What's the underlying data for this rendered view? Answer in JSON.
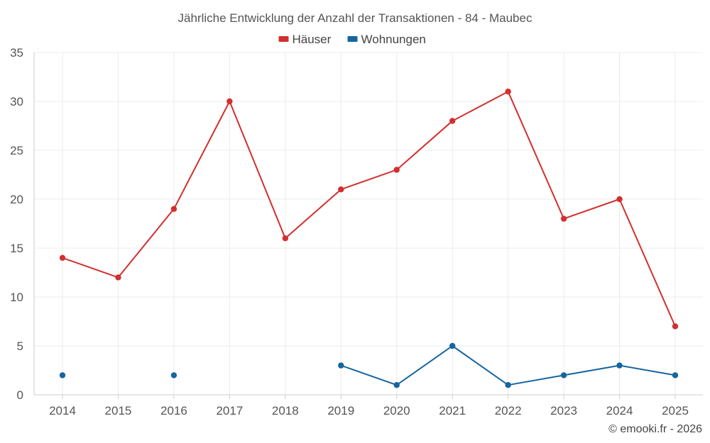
{
  "chart_data": {
    "type": "line",
    "title": "Jährliche Entwicklung der Anzahl der Transaktionen - 84 - Maubec",
    "xlabel": "",
    "ylabel": "",
    "categories": [
      "2014",
      "2015",
      "2016",
      "2017",
      "2018",
      "2019",
      "2020",
      "2021",
      "2022",
      "2023",
      "2024",
      "2025"
    ],
    "ylim": [
      0,
      35
    ],
    "yticks": [
      "0",
      "5",
      "10",
      "15",
      "20",
      "25",
      "30",
      "35"
    ],
    "grid": true,
    "legend_position": "top-center",
    "series": [
      {
        "name": "Häuser",
        "color": "#d32f2f",
        "values": [
          14,
          12,
          19,
          30,
          16,
          21,
          23,
          28,
          31,
          18,
          20,
          7
        ]
      },
      {
        "name": "Wohnungen",
        "color": "#1565a0",
        "values": [
          2,
          null,
          2,
          null,
          null,
          3,
          1,
          5,
          1,
          2,
          3,
          2
        ]
      }
    ]
  },
  "credit": "© emooki.fr - 2026"
}
